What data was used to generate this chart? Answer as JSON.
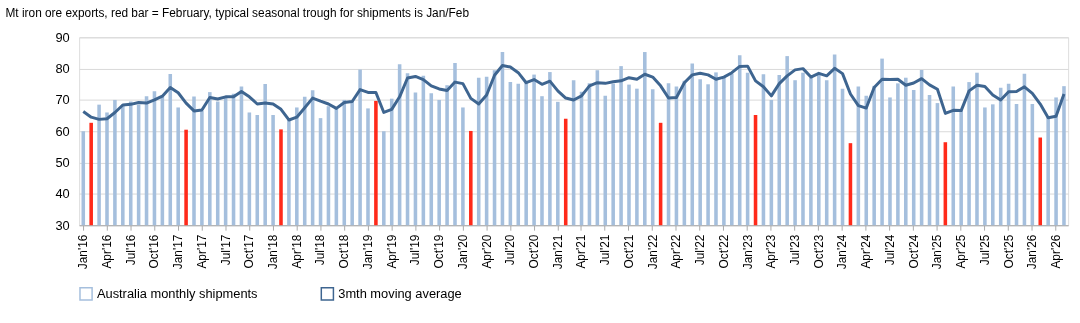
{
  "chart_data": {
    "type": "bar",
    "title": "Mt iron ore exports, red bar = February, typical seasonal trough for shipments is Jan/Feb",
    "categories": [
      "Jan'16",
      null,
      null,
      "Apr'16",
      null,
      null,
      "Jul'16",
      null,
      null,
      "Oct'16",
      null,
      null,
      "Jan'17",
      null,
      null,
      "Apr'17",
      null,
      null,
      "Jul'17",
      null,
      null,
      "Oct'17",
      null,
      null,
      "Jan'18",
      null,
      null,
      "Apr'18",
      null,
      null,
      "Jul'18",
      null,
      null,
      "Oct'18",
      null,
      null,
      "Jan'19",
      null,
      null,
      "Apr'19",
      null,
      null,
      "Jul'19",
      null,
      null,
      "Oct'19",
      null,
      null,
      "Jan'20",
      null,
      null,
      "Apr'20",
      null,
      null,
      "Jul'20",
      null,
      null,
      "Oct'20",
      null,
      null,
      "Jan'21",
      null,
      null,
      "Apr'21",
      null,
      null,
      "Jul'21",
      null,
      null,
      "Oct'21",
      null,
      null,
      "Jan'22",
      null,
      null,
      "Apr'22",
      null,
      null,
      "Jul'22",
      null,
      null,
      "Oct'22",
      null,
      null,
      "Jan'23",
      null,
      null,
      "Apr'23",
      null,
      null,
      "Jul'23",
      null,
      null,
      "Oct'23",
      null,
      null,
      "Jan'24",
      null,
      null,
      "Apr'24",
      null,
      null,
      "Jul'24",
      null,
      null,
      "Oct'24",
      null,
      null,
      "Jan'25",
      null,
      null,
      "Apr'25",
      null,
      null,
      "Jul'25",
      null,
      null,
      "Oct'25",
      null,
      null,
      "Jan'26",
      null,
      null,
      "Apr'26",
      null
    ],
    "series": [
      {
        "name": "Australia monthly shipments",
        "color": "#a5bfdd",
        "colors": [
          "#a5bfdd",
          "#ff2a1a",
          "#a5bfdd",
          "#a5bfdd",
          "#a5bfdd",
          "#a5bfdd",
          "#a5bfdd",
          "#a5bfdd",
          "#a5bfdd",
          "#a5bfdd",
          "#a5bfdd",
          "#a5bfdd",
          "#a5bfdd",
          "#ff2a1a",
          "#a5bfdd",
          "#a5bfdd",
          "#a5bfdd",
          "#a5bfdd",
          "#a5bfdd",
          "#a5bfdd",
          "#a5bfdd",
          "#a5bfdd",
          "#a5bfdd",
          "#a5bfdd",
          "#a5bfdd",
          "#ff2a1a",
          "#a5bfdd",
          "#a5bfdd",
          "#a5bfdd",
          "#a5bfdd",
          "#a5bfdd",
          "#a5bfdd",
          "#a5bfdd",
          "#a5bfdd",
          "#a5bfdd",
          "#a5bfdd",
          "#a5bfdd",
          "#ff2a1a",
          "#a5bfdd",
          "#a5bfdd",
          "#a5bfdd",
          "#a5bfdd",
          "#a5bfdd",
          "#a5bfdd",
          "#a5bfdd",
          "#a5bfdd",
          "#a5bfdd",
          "#a5bfdd",
          "#a5bfdd",
          "#ff2a1a",
          "#a5bfdd",
          "#a5bfdd",
          "#a5bfdd",
          "#a5bfdd",
          "#a5bfdd",
          "#a5bfdd",
          "#a5bfdd",
          "#a5bfdd",
          "#a5bfdd",
          "#a5bfdd",
          "#a5bfdd",
          "#ff2a1a",
          "#a5bfdd",
          "#a5bfdd",
          "#a5bfdd",
          "#a5bfdd",
          "#a5bfdd",
          "#a5bfdd",
          "#a5bfdd",
          "#a5bfdd",
          "#a5bfdd",
          "#a5bfdd",
          "#a5bfdd",
          "#ff2a1a",
          "#a5bfdd",
          "#a5bfdd",
          "#a5bfdd",
          "#a5bfdd",
          "#a5bfdd",
          "#a5bfdd",
          "#a5bfdd",
          "#a5bfdd",
          "#a5bfdd",
          "#a5bfdd",
          "#a5bfdd",
          "#ff2a1a",
          "#a5bfdd",
          "#a5bfdd",
          "#a5bfdd",
          "#a5bfdd",
          "#a5bfdd",
          "#a5bfdd",
          "#a5bfdd",
          "#a5bfdd",
          "#a5bfdd",
          "#a5bfdd",
          "#a5bfdd",
          "#ff2a1a",
          "#a5bfdd",
          "#a5bfdd",
          "#a5bfdd",
          "#a5bfdd",
          "#a5bfdd",
          "#a5bfdd",
          "#a5bfdd",
          "#a5bfdd",
          "#a5bfdd",
          "#a5bfdd",
          "#a5bfdd",
          "#ff2a1a",
          "#a5bfdd",
          "#a5bfdd",
          "#a5bfdd",
          "#a5bfdd",
          "#a5bfdd",
          "#a5bfdd",
          "#a5bfdd",
          "#a5bfdd",
          "#a5bfdd",
          "#a5bfdd",
          "#a5bfdd",
          "#ff2a1a",
          "#a5bfdd",
          "#a5bfdd",
          "#a5bfdd"
        ],
        "values": [
          60,
          62.7,
          68.5,
          66,
          70,
          68.5,
          69.5,
          68.5,
          71.2,
          72.8,
          71,
          78.3,
          67.6,
          60.5,
          71.1,
          66.5,
          72.5,
          69.5,
          71,
          72,
          74.3,
          66,
          65.2,
          75.1,
          65.2,
          60.6,
          63.7,
          67.6,
          71,
          73.1,
          64.2,
          68,
          67.1,
          70,
          69.7,
          79.7,
          67.3,
          69.7,
          60,
          70.4,
          81.4,
          78.5,
          72.4,
          77.7,
          72.1,
          70,
          74.7,
          81.8,
          67.6,
          60.1,
          77.1,
          77.4,
          79.5,
          85.3,
          75.7,
          75.2,
          76,
          78.1,
          71.2,
          78.9,
          69.4,
          64,
          76.3,
          72.6,
          75.3,
          79.5,
          71.3,
          75.2,
          80.8,
          74.9,
          73.6,
          85.3,
          73.4,
          62.7,
          75.3,
          74.3,
          76.1,
          81.6,
          76.6,
          75,
          78.8,
          77.1,
          78.4,
          84.3,
          78.7,
          65.2,
          78.2,
          70,
          78,
          84,
          76.3,
          78.7,
          77.1,
          78.7,
          76.3,
          84.5,
          73.6,
          56.2,
          74.3,
          71.3,
          74.5,
          83.2,
          70.8,
          75.3,
          77.1,
          73.2,
          79.6,
          71.6,
          69,
          56.5,
          74.3,
          66.8,
          75.7,
          78.7,
          67.6,
          68.6,
          73.9,
          75.2,
          68.7,
          78.4,
          68.7,
          58,
          64.5,
          70.8,
          74.4
        ]
      },
      {
        "name": "3mth moving average",
        "type": "line",
        "color": "#3e6590",
        "values": [
          66.3,
          64.5,
          63.8,
          64,
          66,
          68.4,
          68.6,
          69.2,
          69,
          70,
          71.2,
          74,
          72.3,
          69,
          66.5,
          66.8,
          70.8,
          70.3,
          71,
          71,
          72.7,
          71,
          68.7,
          69,
          68.7,
          67,
          63.6,
          64.5,
          67.5,
          70.6,
          69.6,
          68.7,
          67.3,
          69.2,
          69.5,
          73.3,
          72.4,
          72.4,
          66,
          67,
          71,
          77,
          77.5,
          76.5,
          74.5,
          73.5,
          73,
          75.7,
          75.2,
          70.5,
          68.7,
          71.6,
          77.9,
          81,
          80.5,
          78.7,
          75.5,
          76.5,
          75,
          76,
          72.9,
          70.6,
          70,
          71.3,
          74.5,
          75.5,
          75.3,
          75.8,
          76.1,
          77.1,
          76.6,
          78.2,
          77.3,
          74.5,
          70.6,
          70.8,
          75.5,
          78,
          78.5,
          78,
          76.6,
          77.3,
          78.7,
          80.7,
          80.8,
          76.1,
          74.2,
          71.3,
          75.2,
          77.7,
          79.6,
          80,
          77.3,
          78.5,
          77.7,
          80.1,
          78.4,
          71.9,
          68.2,
          67.4,
          74,
          76.6,
          76.5,
          76.6,
          74.7,
          75.4,
          76.8,
          74.8,
          73.4,
          65.7,
          66.7,
          66.6,
          72.9,
          74.7,
          74.3,
          71.6,
          70,
          72.6,
          72.7,
          74.2,
          72.1,
          68.7,
          64.3,
          64.8,
          71.9
        ]
      }
    ],
    "ylim": [
      30,
      90
    ],
    "yticks": [
      30,
      40,
      50,
      60,
      70,
      80,
      90
    ],
    "grid": "y",
    "legend": "bottom",
    "marker": "none",
    "line_style": "solid"
  }
}
